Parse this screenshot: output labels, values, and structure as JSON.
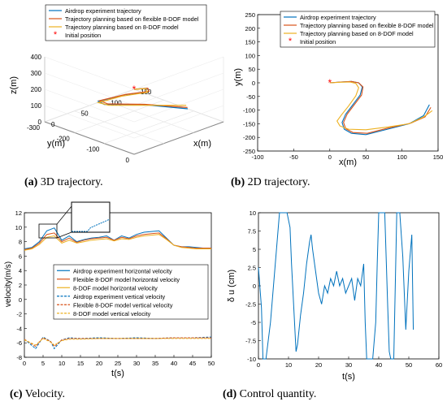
{
  "colors": {
    "airdrop": "#0072BD",
    "flexible": "#D95319",
    "eightdof": "#EDB120",
    "initial": "#FF0000",
    "control": "#0072BD"
  },
  "captions": [
    {
      "tag": "(a)",
      "text": " 3D trajectory."
    },
    {
      "tag": "(b)",
      "text": " 2D trajectory."
    },
    {
      "tag": "(c)",
      "text": " Velocity."
    },
    {
      "tag": "(d)",
      "text": " Control quantity."
    }
  ],
  "chart_data": [
    {
      "type": "line",
      "subtype": "3d",
      "xlabel": "x(m)",
      "ylabel": "y(m)",
      "zlabel": "z(m)",
      "xlim": [
        0,
        150
      ],
      "ylim": [
        -300,
        0
      ],
      "zlim": [
        0,
        400
      ],
      "xticks": [
        "0",
        "50",
        "100",
        "150"
      ],
      "yticks": [
        "-300",
        "-200",
        "-100",
        "0"
      ],
      "zticks": [
        "0",
        "100",
        "200",
        "300",
        "400"
      ],
      "grid": true,
      "legend_position": "top",
      "legend": [
        "Airdrop experiment trajectory",
        "Trajectory planning based on flexible 8-DOF model",
        "Trajectory planning based on 8-DOF model",
        "Initial position"
      ],
      "series": [
        {
          "name": "Airdrop experiment trajectory",
          "points": [
            [
              0,
              0,
              400
            ],
            [
              25,
              -5,
              370
            ],
            [
              45,
              -40,
              300
            ],
            [
              40,
              -110,
              240
            ],
            [
              25,
              -170,
              180
            ],
            [
              45,
              -190,
              120
            ],
            [
              95,
              -165,
              70
            ],
            [
              135,
              -90,
              40
            ]
          ]
        },
        {
          "name": "Trajectory planning based on flexible 8-DOF model",
          "points": [
            [
              0,
              0,
              400
            ],
            [
              26,
              -6,
              368
            ],
            [
              46,
              -42,
              298
            ],
            [
              42,
              -112,
              238
            ],
            [
              28,
              -172,
              178
            ],
            [
              50,
              -188,
              118
            ],
            [
              98,
              -160,
              70
            ],
            [
              137,
              -95,
              42
            ]
          ]
        },
        {
          "name": "Trajectory planning based on 8-DOF model",
          "points": [
            [
              0,
              0,
              400
            ],
            [
              22,
              -5,
              372
            ],
            [
              40,
              -35,
              305
            ],
            [
              32,
              -105,
              245
            ],
            [
              20,
              -160,
              185
            ],
            [
              45,
              -175,
              125
            ],
            [
              95,
              -150,
              75
            ],
            [
              140,
              -105,
              45
            ]
          ]
        }
      ],
      "initial_point": [
        0,
        0,
        400
      ]
    },
    {
      "type": "line",
      "xlabel": "x(m)",
      "ylabel": "y(m)",
      "xlim": [
        -100,
        150
      ],
      "ylim": [
        -250,
        250
      ],
      "xticks": [
        "-100",
        "-50",
        "0",
        "50",
        "100",
        "150"
      ],
      "yticks": [
        "-250",
        "-200",
        "-150",
        "-100",
        "-50",
        "0",
        "50",
        "100",
        "150",
        "200",
        "250"
      ],
      "grid": false,
      "legend_position": "top-left",
      "legend": [
        "Airdrop experiment trajectory",
        "Trajectory planning based on flexible 8-DOF model",
        "Trajectory planning based on 8-DOF model",
        "Initial position"
      ],
      "series": [
        {
          "name": "Airdrop experiment trajectory",
          "x": [
            0,
            15,
            30,
            40,
            45,
            42,
            32,
            22,
            17,
            20,
            30,
            50,
            80,
            110,
            130,
            138
          ],
          "y": [
            0,
            3,
            5,
            0,
            -15,
            -45,
            -80,
            -115,
            -145,
            -170,
            -185,
            -190,
            -170,
            -150,
            -120,
            -80
          ]
        },
        {
          "name": "Trajectory planning based on flexible 8-DOF model",
          "x": [
            0,
            15,
            30,
            40,
            46,
            44,
            34,
            24,
            19,
            22,
            32,
            52,
            82,
            112,
            132,
            140
          ],
          "y": [
            0,
            3,
            5,
            0,
            -15,
            -45,
            -80,
            -115,
            -145,
            -168,
            -182,
            -185,
            -165,
            -148,
            -125,
            -90
          ]
        },
        {
          "name": "Trajectory planning based on 8-DOF model",
          "x": [
            0,
            15,
            28,
            36,
            40,
            36,
            26,
            16,
            10,
            14,
            26,
            50,
            80,
            110,
            130,
            142
          ],
          "y": [
            0,
            2,
            3,
            -2,
            -18,
            -48,
            -85,
            -118,
            -140,
            -158,
            -170,
            -172,
            -162,
            -150,
            -125,
            -102
          ]
        }
      ],
      "initial_point": [
        0,
        0
      ]
    },
    {
      "type": "line",
      "xlabel": "t(s)",
      "ylabel": "velocity(m/s)",
      "xlim": [
        0,
        50
      ],
      "ylim": [
        -8,
        12
      ],
      "xticks": [
        "0",
        "5",
        "10",
        "15",
        "20",
        "25",
        "30",
        "35",
        "40",
        "45",
        "50"
      ],
      "yticks": [
        "-8",
        "-6",
        "-4",
        "-2",
        "0",
        "2",
        "4",
        "6",
        "8",
        "10",
        "12"
      ],
      "grid": false,
      "legend_position": "center",
      "legend": [
        "Airdrop experiment horizontal velocity",
        "Flexible 8-DOF model horizontal velocity",
        "8-DOF model horizontal velocity",
        "Airdrop experiment vertical velocity",
        "Flexible 8-DOF model vertical velocity",
        "8-DOF model vertical velocity"
      ],
      "series": [
        {
          "name": "Airdrop experiment horizontal velocity",
          "x": [
            0,
            2,
            4,
            6,
            8,
            10,
            12,
            14,
            16,
            18,
            20,
            22,
            24,
            26,
            28,
            30,
            32,
            34,
            36,
            38,
            40,
            42,
            44,
            46,
            48,
            50
          ],
          "y": [
            7,
            7.2,
            8,
            9.5,
            9.9,
            8.2,
            8.8,
            8,
            8.3,
            8.5,
            8.6,
            8.8,
            8.2,
            8.8,
            8.5,
            9,
            9.3,
            9.4,
            9.5,
            8.5,
            7.5,
            7.3,
            7.3,
            7.2,
            7.1,
            7.1
          ]
        },
        {
          "name": "Flexible 8-DOF model horizontal velocity",
          "x": [
            0,
            2,
            4,
            6,
            8,
            10,
            12,
            14,
            16,
            18,
            20,
            22,
            24,
            26,
            28,
            30,
            32,
            34,
            36,
            38,
            40,
            42,
            44,
            46,
            48,
            50
          ],
          "y": [
            6.9,
            7.1,
            7.8,
            9,
            9.2,
            8,
            8.5,
            7.9,
            8.2,
            8.4,
            8.5,
            8.6,
            8.2,
            8.6,
            8.4,
            8.8,
            9,
            9.1,
            9.2,
            8.4,
            7.5,
            7.3,
            7.2,
            7.1,
            7.1,
            7.1
          ]
        },
        {
          "name": "8-DOF model horizontal velocity",
          "x": [
            0,
            2,
            4,
            6,
            8,
            10,
            12,
            14,
            16,
            18,
            20,
            22,
            24,
            26,
            28,
            30,
            32,
            34,
            36,
            38,
            40,
            42,
            44,
            46,
            48,
            50
          ],
          "y": [
            6.8,
            7,
            7.6,
            8.6,
            8.8,
            7.8,
            8.2,
            7.8,
            8,
            8.2,
            8.3,
            8.4,
            8.1,
            8.4,
            8.3,
            8.6,
            8.8,
            8.9,
            9,
            8.3,
            7.5,
            7.2,
            7.1,
            7,
            7,
            7
          ]
        },
        {
          "name": "Airdrop experiment vertical velocity",
          "x": [
            0,
            3,
            5,
            7,
            8,
            10,
            12,
            15,
            20,
            25,
            30,
            35,
            40,
            45,
            50
          ],
          "y": [
            -5.5,
            -6.8,
            -5.2,
            -5.8,
            -6.8,
            -5.6,
            -5.3,
            -5.4,
            -5.3,
            -5.4,
            -5.3,
            -5.4,
            -5.3,
            -5.3,
            -5.2
          ]
        },
        {
          "name": "Flexible 8-DOF model vertical velocity",
          "x": [
            0,
            3,
            5,
            7,
            8,
            10,
            12,
            15,
            20,
            25,
            30,
            35,
            40,
            45,
            50
          ],
          "y": [
            -5.5,
            -6.5,
            -5.3,
            -5.8,
            -6.5,
            -5.6,
            -5.4,
            -5.4,
            -5.4,
            -5.4,
            -5.4,
            -5.4,
            -5.3,
            -5.3,
            -5.3
          ]
        },
        {
          "name": "8-DOF model vertical velocity",
          "x": [
            0,
            3,
            5,
            7,
            8,
            10,
            12,
            15,
            20,
            25,
            30,
            35,
            40,
            45,
            50
          ],
          "y": [
            -5.6,
            -6.3,
            -5.4,
            -5.9,
            -6.3,
            -5.7,
            -5.5,
            -5.5,
            -5.4,
            -5.4,
            -5.4,
            -5.4,
            -5.4,
            -5.4,
            -5.4
          ]
        }
      ],
      "inset": {
        "x_range": [
          4.2,
          7.8
        ],
        "y_range": [
          9.3,
          10.6
        ]
      }
    },
    {
      "type": "line",
      "xlabel": "t(s)",
      "ylabel": "δ u (cm)",
      "xlim": [
        0,
        60
      ],
      "ylim": [
        -10,
        10
      ],
      "xticks": [
        "0",
        "10",
        "20",
        "30",
        "40",
        "50",
        "60"
      ],
      "yticks": [
        "-10",
        "-7.5",
        "-5",
        "-2.5",
        "0",
        "2.5",
        "5",
        "7.5",
        "10"
      ],
      "grid": false,
      "series": [
        {
          "name": "",
          "x": [
            0,
            1,
            1.5,
            2.5,
            4,
            5,
            7,
            8,
            9.5,
            10.5,
            11,
            12,
            12.5,
            13,
            14,
            15,
            16,
            17,
            17.5,
            18,
            19,
            20,
            21,
            22,
            23,
            24,
            25,
            26,
            27,
            28,
            29,
            30,
            31,
            32,
            33,
            34,
            35,
            35.5,
            36,
            37,
            38,
            39,
            39.5,
            40,
            41,
            42,
            43,
            43.5,
            44,
            45,
            45.5,
            46,
            47,
            48,
            49,
            50,
            51,
            51.5
          ],
          "y": [
            2.5,
            -3,
            -10,
            -10,
            -5,
            0,
            10,
            10,
            10,
            8,
            3,
            -5,
            -9,
            -8,
            -4,
            -1,
            3,
            6,
            7,
            5,
            2,
            -1,
            -2.5,
            0,
            -1,
            1,
            0,
            2,
            0,
            1,
            -1,
            0,
            1,
            -2,
            1,
            0,
            3,
            -5,
            -10,
            -10,
            -10,
            -5,
            3,
            10,
            10,
            10,
            -3,
            -9,
            -10,
            -10,
            0,
            10,
            10,
            4,
            -6,
            2,
            7,
            -6
          ]
        }
      ]
    }
  ]
}
